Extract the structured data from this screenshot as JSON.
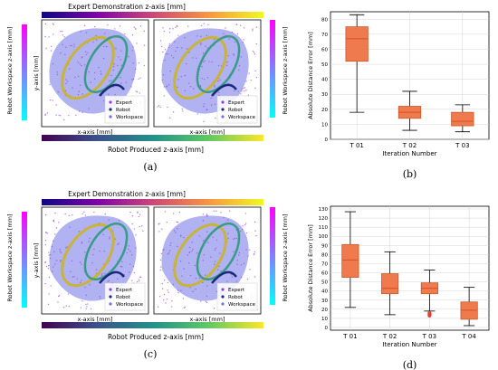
{
  "colors": {
    "workspace_fill": "#6f72e6",
    "box_fill": "#ef7a4e",
    "box_edge": "#c85a2c",
    "median": "#d8501f",
    "outlier": "#e02a1a",
    "expert_points": "#9a3fd0",
    "robot_curve": "#1b2a7a",
    "plasma_colorbar": [
      "#0d0887",
      "#7e03a8",
      "#cc4778",
      "#f89540",
      "#f0f921"
    ],
    "viridis_colorbar": [
      "#440154",
      "#3b528b",
      "#21918c",
      "#5ec962",
      "#fde725"
    ],
    "cool_colorbar": [
      "#00ffff",
      "#8080ff",
      "#ff00ff"
    ]
  },
  "chart_data": [
    {
      "panel": "(a)",
      "type": "scatter",
      "colorbar_top": "Expert Demonstration z-axis [mm]",
      "colorbar_bottom": "Robot Produced z-axis [mm]",
      "left_colorbar_label": "Robot Workspace z-axis [mm]",
      "right_colorbar_label": "Robot Workspace z-axis [mm]",
      "subplots": [
        {
          "xlabel": "x-axis [mm]",
          "ylabel": "y-axis [mm]",
          "legend": [
            "Expert",
            "Robot",
            "Workspace"
          ]
        },
        {
          "xlabel": "x-axis [mm]",
          "ylabel": "",
          "legend": [
            "Expert",
            "Robot",
            "Workspace"
          ]
        }
      ]
    },
    {
      "panel": "(b)",
      "type": "box",
      "categories": [
        "T 01",
        "T 02",
        "T 03"
      ],
      "xlabel": "Iteration Number",
      "ylabel": "Absolute Distance Error [mm]",
      "ylim": [
        0,
        85
      ],
      "yticks": [
        0,
        10,
        20,
        30,
        40,
        50,
        60,
        70,
        80
      ],
      "grid": true,
      "boxes": [
        {
          "whislo": 18,
          "q1": 52,
          "med": 67,
          "q3": 75,
          "whishi": 83,
          "fliers": []
        },
        {
          "whislo": 6,
          "q1": 14,
          "med": 18,
          "q3": 22,
          "whishi": 32,
          "fliers": []
        },
        {
          "whislo": 5,
          "q1": 9,
          "med": 12,
          "q3": 18,
          "whishi": 23,
          "fliers": []
        }
      ]
    },
    {
      "panel": "(c)",
      "type": "scatter",
      "colorbar_top": "Expert Demonstration z-axis [mm]",
      "colorbar_bottom": "Robot Produced z-axis [mm]",
      "left_colorbar_label": "Robot Workspace z-axis [mm]",
      "right_colorbar_label": "Robot Workspace z-axis [mm]",
      "subplots": [
        {
          "xlabel": "x-axis [mm]",
          "ylabel": "y-axis [mm]",
          "legend": [
            "Expert",
            "Robot",
            "Workspace"
          ]
        },
        {
          "xlabel": "x-axis [mm]",
          "ylabel": "",
          "legend": [
            "Expert",
            "Robot",
            "Workspace"
          ]
        }
      ]
    },
    {
      "panel": "(d)",
      "type": "box",
      "categories": [
        "T 01",
        "T 02",
        "T 03",
        "T 04"
      ],
      "xlabel": "Iteration Number",
      "ylabel": "Absolute Distance Error [mm]",
      "ylim": [
        -3,
        133
      ],
      "yticks": [
        0,
        10,
        20,
        30,
        40,
        50,
        60,
        70,
        80,
        90,
        100,
        110,
        120,
        130
      ],
      "grid": true,
      "boxes": [
        {
          "whislo": 22,
          "q1": 55,
          "med": 74,
          "q3": 91,
          "whishi": 127,
          "fliers": []
        },
        {
          "whislo": 14,
          "q1": 37,
          "med": 43,
          "q3": 59,
          "whishi": 83,
          "fliers": []
        },
        {
          "whislo": 18,
          "q1": 37,
          "med": 43,
          "q3": 49,
          "whishi": 63,
          "fliers": [
            13,
            14,
            15,
            16
          ]
        },
        {
          "whislo": 2,
          "q1": 9,
          "med": 19,
          "q3": 28,
          "whishi": 44,
          "fliers": []
        }
      ]
    }
  ]
}
